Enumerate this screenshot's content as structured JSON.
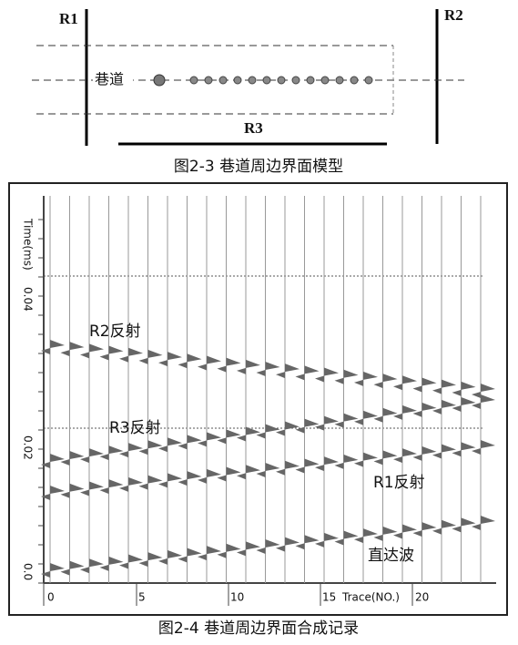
{
  "figure1": {
    "labels": {
      "r1": "R1",
      "r2": "R2",
      "r3": "R3",
      "tunnel": "巷道"
    },
    "caption": "图2-3 巷道周边界面模型"
  },
  "figure2": {
    "y_axis_label": "Time(ms)",
    "y_tick_labels": [
      "0.0",
      "0.02",
      "0.04"
    ],
    "x_tick_labels": [
      "0",
      "5",
      "10",
      "15",
      "20"
    ],
    "x_axis_label": "Trace(NO.)",
    "annotations": {
      "r2": "R2反射",
      "r3": "R3反射",
      "r1": "R1反射",
      "direct": "直达波"
    },
    "caption": "图2-4 巷道周边界面合成记录"
  }
}
